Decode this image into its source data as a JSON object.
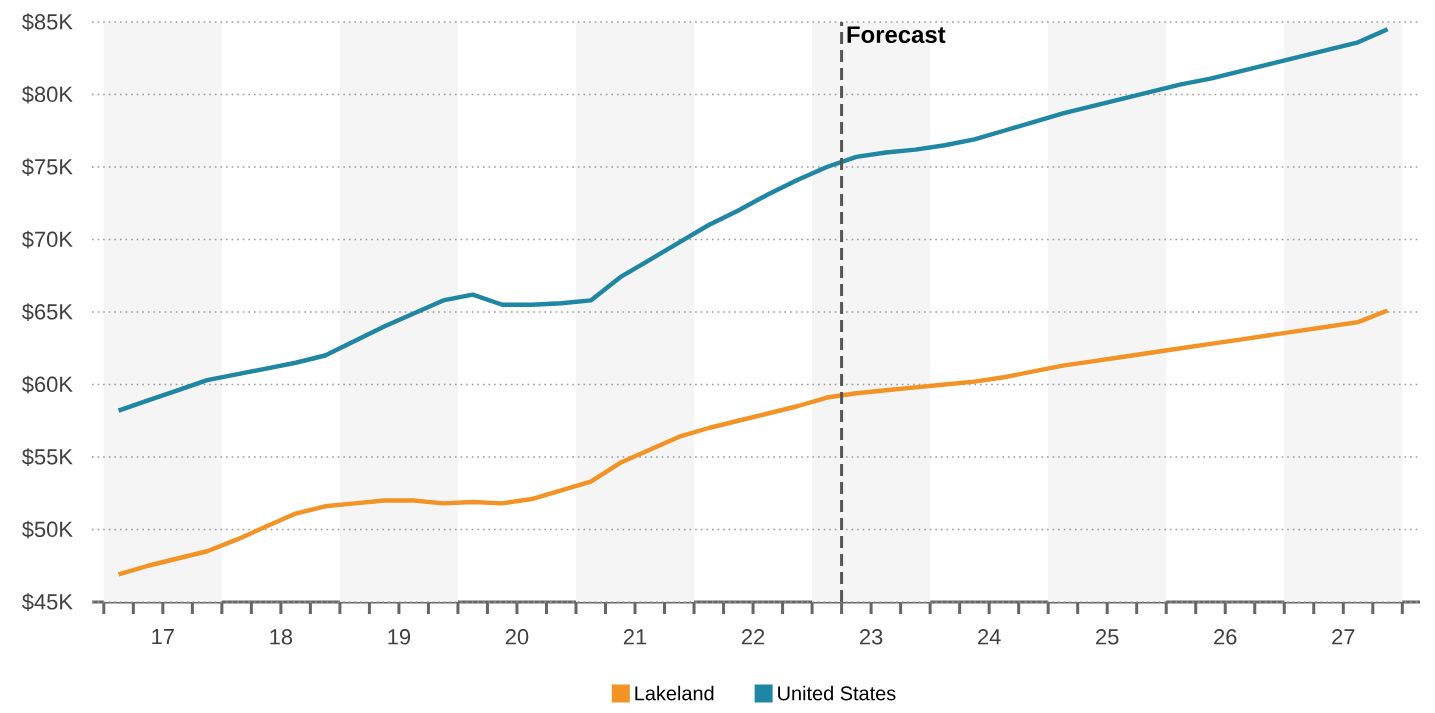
{
  "chart_data": {
    "type": "line",
    "x": [
      16.625,
      16.875,
      17.125,
      17.375,
      17.625,
      17.875,
      18.125,
      18.375,
      18.625,
      18.875,
      19.125,
      19.375,
      19.625,
      19.875,
      20.125,
      20.375,
      20.625,
      20.875,
      21.125,
      21.375,
      21.625,
      21.875,
      22.125,
      22.375,
      22.625,
      22.875,
      23.125,
      23.375,
      23.625,
      23.875,
      24.125,
      24.375,
      24.625,
      24.875,
      25.125,
      25.375,
      25.625,
      25.875,
      26.125,
      26.375,
      26.625,
      26.875,
      27.125,
      27.375
    ],
    "series": [
      {
        "name": "Lakeland",
        "color": "#f39325",
        "values": [
          46.9,
          47.5,
          48.0,
          48.5,
          49.3,
          50.2,
          51.1,
          51.6,
          51.8,
          52.0,
          52.0,
          51.8,
          51.9,
          51.8,
          52.1,
          52.7,
          53.3,
          54.6,
          55.5,
          56.4,
          57.0,
          57.5,
          58.0,
          58.5,
          59.1,
          59.4,
          59.6,
          59.8,
          60.0,
          60.2,
          60.5,
          60.9,
          61.3,
          61.6,
          61.9,
          62.2,
          62.5,
          62.8,
          63.1,
          63.4,
          63.7,
          64.0,
          64.3,
          65.1
        ]
      },
      {
        "name": "United States",
        "color": "#1f86a3",
        "values": [
          58.2,
          58.9,
          59.6,
          60.3,
          60.7,
          61.1,
          61.5,
          62.0,
          63.0,
          64.0,
          64.9,
          65.8,
          66.2,
          65.5,
          65.5,
          65.6,
          65.8,
          67.4,
          68.6,
          69.8,
          71.0,
          72.0,
          73.1,
          74.1,
          75.0,
          75.7,
          76.0,
          76.2,
          76.5,
          76.9,
          77.5,
          78.1,
          78.7,
          79.2,
          79.7,
          80.2,
          80.7,
          81.1,
          81.6,
          82.1,
          82.6,
          83.1,
          83.6,
          84.5
        ]
      }
    ],
    "xlim": [
      16.4,
      27.65
    ],
    "xticks": [
      {
        "value": 16.5,
        "label": null
      },
      {
        "value": 16.75,
        "label": null
      },
      {
        "value": 17,
        "label": "17"
      },
      {
        "value": 17.25,
        "label": null
      },
      {
        "value": 17.5,
        "label": null
      },
      {
        "value": 17.75,
        "label": null
      },
      {
        "value": 18,
        "label": "18"
      },
      {
        "value": 18.25,
        "label": null
      },
      {
        "value": 18.5,
        "label": null
      },
      {
        "value": 18.75,
        "label": null
      },
      {
        "value": 19,
        "label": "19"
      },
      {
        "value": 19.25,
        "label": null
      },
      {
        "value": 19.5,
        "label": null
      },
      {
        "value": 19.75,
        "label": null
      },
      {
        "value": 20,
        "label": "20"
      },
      {
        "value": 20.25,
        "label": null
      },
      {
        "value": 20.5,
        "label": null
      },
      {
        "value": 20.75,
        "label": null
      },
      {
        "value": 21,
        "label": "21"
      },
      {
        "value": 21.25,
        "label": null
      },
      {
        "value": 21.5,
        "label": null
      },
      {
        "value": 21.75,
        "label": null
      },
      {
        "value": 22,
        "label": "22"
      },
      {
        "value": 22.25,
        "label": null
      },
      {
        "value": 22.5,
        "label": null
      },
      {
        "value": 22.75,
        "label": null
      },
      {
        "value": 23,
        "label": "23"
      },
      {
        "value": 23.25,
        "label": null
      },
      {
        "value": 23.5,
        "label": null
      },
      {
        "value": 23.75,
        "label": null
      },
      {
        "value": 24,
        "label": "24"
      },
      {
        "value": 24.25,
        "label": null
      },
      {
        "value": 24.5,
        "label": null
      },
      {
        "value": 24.75,
        "label": null
      },
      {
        "value": 25,
        "label": "25"
      },
      {
        "value": 25.25,
        "label": null
      },
      {
        "value": 25.5,
        "label": null
      },
      {
        "value": 25.75,
        "label": null
      },
      {
        "value": 26,
        "label": "26"
      },
      {
        "value": 26.25,
        "label": null
      },
      {
        "value": 26.5,
        "label": null
      },
      {
        "value": 26.75,
        "label": null
      },
      {
        "value": 27,
        "label": "27"
      },
      {
        "value": 27.25,
        "label": null
      },
      {
        "value": 27.5,
        "label": null
      }
    ],
    "ylim": [
      45,
      85
    ],
    "yticks": [
      {
        "value": 45,
        "label": "$45K"
      },
      {
        "value": 50,
        "label": "$50K"
      },
      {
        "value": 55,
        "label": "$55K"
      },
      {
        "value": 60,
        "label": "$60K"
      },
      {
        "value": 65,
        "label": "$65K"
      },
      {
        "value": 70,
        "label": "$70K"
      },
      {
        "value": 75,
        "label": "$75K"
      },
      {
        "value": 80,
        "label": "$80K"
      },
      {
        "value": 85,
        "label": "$85K"
      }
    ],
    "grid": "y",
    "legend": "bottom",
    "marker": "none",
    "line_style": "solid",
    "ref_lines": [
      {
        "axis": "x",
        "value": 22.75,
        "label": "Forecast",
        "color": "#555555",
        "line_style": "dashed"
      }
    ],
    "bands": [
      {
        "axis": "x",
        "from": 16.5,
        "to": 17.5,
        "color": "#f5f5f5"
      },
      {
        "axis": "x",
        "from": 18.5,
        "to": 19.5,
        "color": "#f5f5f5"
      },
      {
        "axis": "x",
        "from": 20.5,
        "to": 21.5,
        "color": "#f5f5f5"
      },
      {
        "axis": "x",
        "from": 22.5,
        "to": 23.5,
        "color": "#f5f5f5"
      },
      {
        "axis": "x",
        "from": 24.5,
        "to": 25.5,
        "color": "#f5f5f5"
      },
      {
        "axis": "x",
        "from": 26.5,
        "to": 27.5,
        "color": "#f5f5f5"
      }
    ]
  }
}
